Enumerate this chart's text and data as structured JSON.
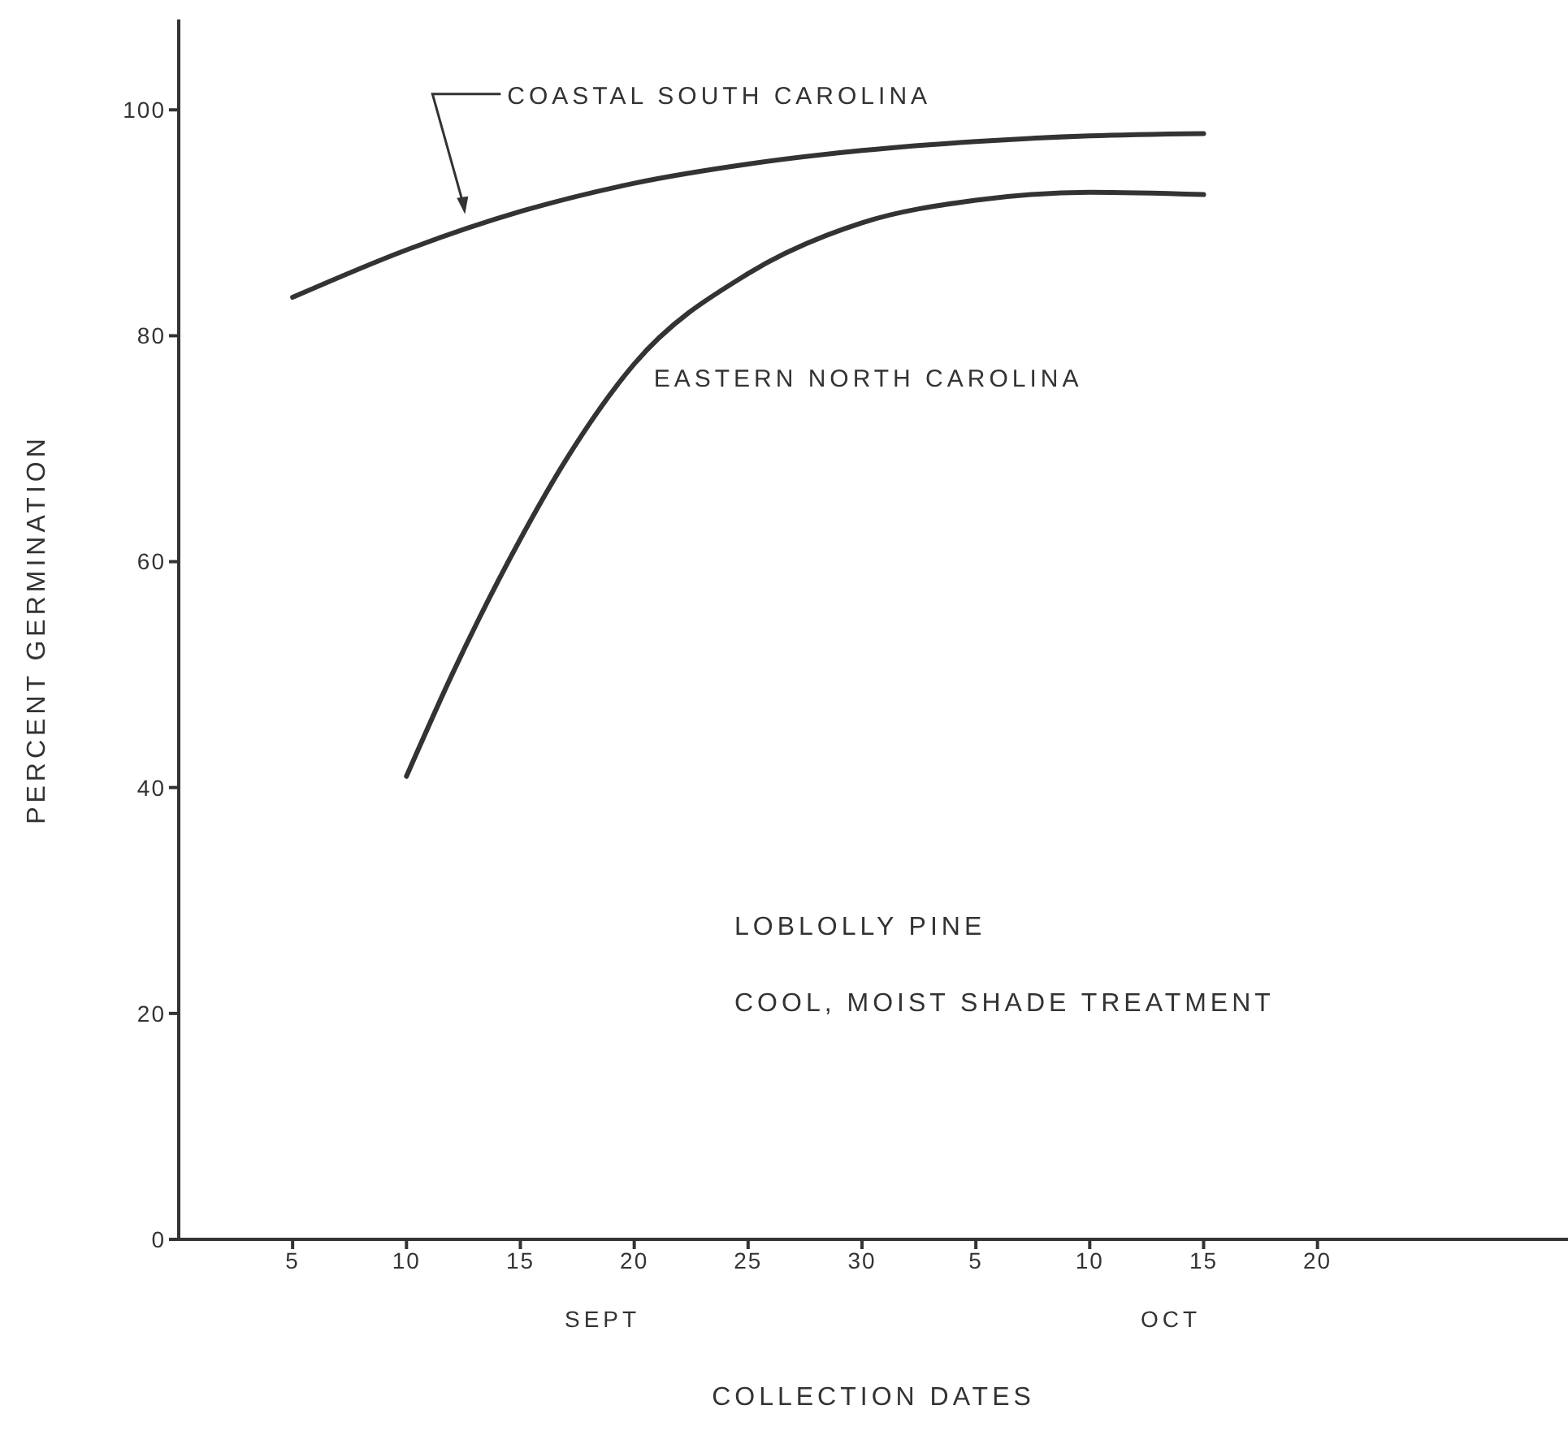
{
  "chart_data": {
    "type": "line",
    "xlabel": "COLLECTION DATES",
    "ylabel": "PERCENT GERMINATION",
    "xlim": [
      "--08-31",
      "--10-31"
    ],
    "xticks": [
      {
        "value": "--09-05",
        "label": "5"
      },
      {
        "value": "--09-10",
        "label": "10"
      },
      {
        "value": "--09-15",
        "label": "15"
      },
      {
        "value": "--09-20",
        "label": "20"
      },
      {
        "value": "--09-25",
        "label": "25"
      },
      {
        "value": "--09-30",
        "label": "30"
      },
      {
        "value": "--10-05",
        "label": "5"
      },
      {
        "value": "--10-10",
        "label": "10"
      },
      {
        "value": "--10-15",
        "label": "15"
      },
      {
        "value": "--10-20",
        "label": "20"
      }
    ],
    "ylim": [
      0,
      108
    ],
    "yticks": [
      0,
      20,
      40,
      60,
      80,
      100
    ],
    "grid": false,
    "legend": false,
    "marker": "none",
    "line_style": "solid",
    "series": [
      {
        "name": "COASTAL SOUTH CAROLINA",
        "color": "#333333",
        "x": [
          "--09-05",
          "--09-10",
          "--09-15",
          "--09-20",
          "--09-25",
          "--09-30",
          "--10-05",
          "--10-10",
          "--10-15"
        ],
        "values": [
          83.4,
          87.6,
          91,
          93.5,
          95.2,
          96.4,
          97.2,
          97.7,
          97.9
        ]
      },
      {
        "name": "EASTERN NORTH CAROLINA",
        "color": "#333333",
        "x": [
          "--09-10",
          "--09-12",
          "--09-15",
          "--09-17",
          "--09-20",
          "--09-25",
          "--09-30",
          "--10-05",
          "--10-10",
          "--10-15"
        ],
        "values": [
          41,
          50,
          62,
          69,
          77.5,
          85.5,
          90,
          92,
          92.7,
          92.5
        ]
      }
    ],
    "annotations": [
      "SEPT",
      "OCT",
      "LOBLOLLY PINE",
      "COOL, MOIST SHADE TREATMENT"
    ]
  }
}
